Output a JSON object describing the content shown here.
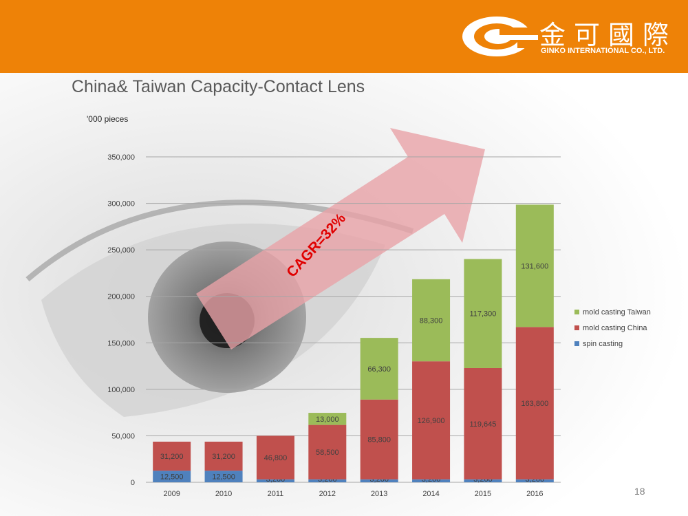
{
  "header": {
    "logo_cn": "金可國際",
    "logo_en": "GINKO INTERNATIONAL CO., LTD.",
    "brand_color": "#ee8207"
  },
  "slide": {
    "title": "China& Taiwan Capacity-Contact Lens",
    "unit": "'000 pieces",
    "annotation": "CAGR=32%",
    "page_number": "18"
  },
  "chart_data": {
    "type": "bar",
    "stacked": true,
    "categories": [
      "2009",
      "2010",
      "2011",
      "2012",
      "2013",
      "2014",
      "2015",
      "2016"
    ],
    "series": [
      {
        "name": "spin casting",
        "color": "#4f81bd",
        "values": [
          12500,
          12500,
          3200,
          3200,
          3200,
          3200,
          3200,
          3200
        ]
      },
      {
        "name": "mold casting China",
        "color": "#c0504d",
        "values": [
          31200,
          31200,
          46800,
          58500,
          85800,
          126900,
          119645,
          163800
        ]
      },
      {
        "name": "mold casting Taiwan",
        "color": "#9bbb59",
        "values": [
          0,
          0,
          0,
          13000,
          66300,
          88300,
          117300,
          131600
        ]
      }
    ],
    "data_labels": [
      [
        "12,500",
        "12,500",
        "3,200",
        "3,200",
        "3,200",
        "3,200",
        "3,200",
        "3,200"
      ],
      [
        "31,200",
        "31,200",
        "46,800",
        "58,500",
        "85,800",
        "126,900",
        "119,645",
        "163,800"
      ],
      [
        "",
        "",
        "",
        "13,000",
        "66,300",
        "88,300",
        "117,300",
        "131,600"
      ]
    ],
    "ylim": [
      0,
      350000
    ],
    "yticks": [
      0,
      50000,
      100000,
      150000,
      200000,
      250000,
      300000,
      350000
    ],
    "ytick_labels": [
      "0",
      "50,000",
      "100,000",
      "150,000",
      "200,000",
      "250,000",
      "300,000",
      "350,000"
    ],
    "legend_order": [
      "mold casting Taiwan",
      "mold casting China",
      "spin casting"
    ],
    "legend_position": "right",
    "grid": true
  }
}
